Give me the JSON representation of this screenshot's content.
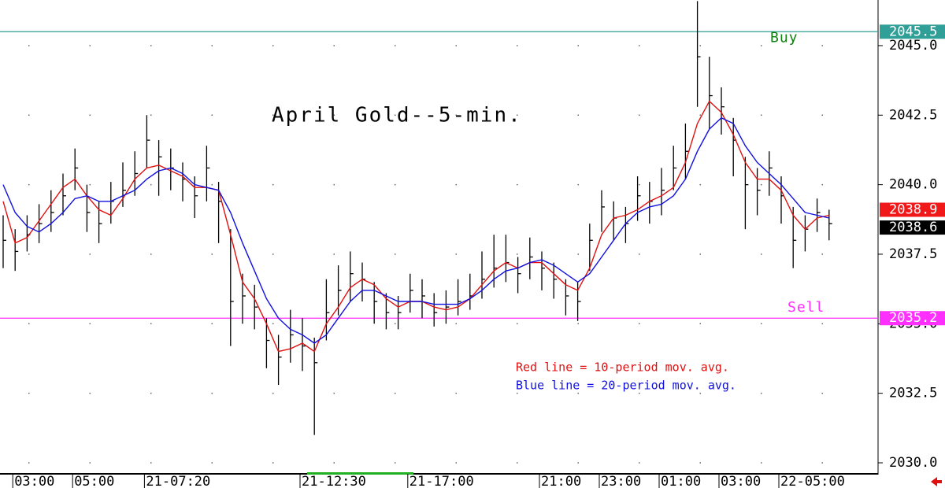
{
  "chart_data": {
    "type": "ohlc",
    "title": "April Gold--5-min.",
    "annotations": [
      {
        "text": "Red line = 10-period mov. avg.",
        "color": "#e01010"
      },
      {
        "text": "Blue line = 20-period mov. avg.",
        "color": "#1010e0"
      }
    ],
    "categories": [
      null,
      "03:00",
      null,
      null,
      null,
      null,
      "05:00",
      null,
      null,
      null,
      null,
      null,
      "21-07:20",
      null,
      null,
      null,
      null,
      null,
      null,
      null,
      null,
      null,
      null,
      null,
      null,
      "21-12:30",
      null,
      null,
      null,
      null,
      null,
      null,
      null,
      null,
      "21-17:00",
      null,
      null,
      null,
      null,
      null,
      null,
      null,
      null,
      null,
      null,
      "21:00",
      null,
      null,
      null,
      null,
      "23:00",
      null,
      null,
      null,
      null,
      "01:00",
      null,
      null,
      null,
      null,
      "03:00",
      null,
      null,
      null,
      null,
      "22-05:00",
      null,
      null,
      null,
      null
    ],
    "high": [
      2038.9,
      2038.4,
      2038.9,
      2039.3,
      2039.8,
      2040.4,
      2041.3,
      2040.0,
      2039.4,
      2040.1,
      2040.8,
      2041.2,
      2042.5,
      2041.6,
      2041.3,
      2040.8,
      2040.3,
      2041.4,
      2040.1,
      2038.4,
      2036.8,
      2036.4,
      2035.2,
      2034.6,
      2035.5,
      2035.2,
      2034.5,
      2036.6,
      2037.1,
      2037.6,
      2037.2,
      2036.5,
      2036.1,
      2036.0,
      2036.8,
      2036.6,
      2036.1,
      2036.2,
      2036.6,
      2036.8,
      2037.6,
      2038.2,
      2038.2,
      2037.4,
      2038.1,
      2037.6,
      2037.2,
      2036.6,
      2036.5,
      2038.6,
      2039.8,
      2039.4,
      2039.2,
      2040.3,
      2040.1,
      2040.6,
      2041.4,
      2042.2,
      2046.6,
      2044.6,
      2043.5,
      2042.4,
      2041.0,
      2040.6,
      2041.2,
      2040.3,
      2039.2,
      2038.9,
      2039.5,
      2039.1
    ],
    "low": [
      2037.0,
      2036.9,
      2037.6,
      2037.9,
      2038.3,
      2038.9,
      2039.8,
      2038.3,
      2037.9,
      2038.6,
      2039.2,
      2039.6,
      2040.6,
      2039.6,
      2039.8,
      2039.4,
      2038.8,
      2039.4,
      2037.9,
      2034.2,
      2035.0,
      2034.8,
      2033.4,
      2032.8,
      2033.6,
      2033.3,
      2031.0,
      2034.4,
      2035.3,
      2035.8,
      2035.8,
      2035.0,
      2034.8,
      2034.8,
      2035.4,
      2035.2,
      2034.9,
      2035.0,
      2035.3,
      2035.5,
      2035.9,
      2036.3,
      2036.5,
      2036.1,
      2036.6,
      2036.2,
      2035.9,
      2035.3,
      2035.1,
      2036.9,
      2038.3,
      2038.0,
      2037.9,
      2038.7,
      2038.6,
      2038.9,
      2039.8,
      2040.2,
      2042.8,
      2042.0,
      2041.8,
      2040.3,
      2038.4,
      2038.9,
      2039.6,
      2038.6,
      2037.0,
      2037.6,
      2038.3,
      2038.0
    ],
    "close": [
      2038.0,
      2037.6,
      2038.2,
      2038.6,
      2039.0,
      2039.6,
      2040.6,
      2039.0,
      2038.6,
      2039.4,
      2039.8,
      2040.4,
      2041.6,
      2041.0,
      2040.6,
      2040.2,
      2039.6,
      2040.6,
      2039.4,
      2035.8,
      2036.0,
      2035.6,
      2034.4,
      2033.8,
      2034.6,
      2034.2,
      2033.6,
      2035.4,
      2036.2,
      2036.8,
      2036.6,
      2035.8,
      2035.4,
      2035.4,
      2036.2,
      2036.0,
      2035.4,
      2035.6,
      2035.8,
      2036.0,
      2036.6,
      2037.0,
      2037.2,
      2036.8,
      2037.4,
      2037.0,
      2036.6,
      2036.0,
      2035.8,
      2038.0,
      2039.2,
      2038.8,
      2038.6,
      2039.6,
      2039.4,
      2039.8,
      2040.6,
      2041.2,
      2044.6,
      2043.2,
      2042.8,
      2041.6,
      2040.0,
      2039.8,
      2040.6,
      2039.6,
      2038.0,
      2038.4,
      2039.0,
      2038.6
    ],
    "bar_color": "#000000",
    "series": [
      {
        "color": "#e01010",
        "values": [
          2039.4,
          2037.9,
          2038.1,
          2038.7,
          2039.3,
          2039.9,
          2040.2,
          2039.6,
          2039.1,
          2038.9,
          2039.5,
          2040.2,
          2040.6,
          2040.7,
          2040.5,
          2040.3,
          2039.9,
          2039.9,
          2039.8,
          2038.2,
          2036.5,
          2035.9,
          2035.0,
          2034.0,
          2034.1,
          2034.3,
          2034.0,
          2035.0,
          2035.6,
          2036.3,
          2036.6,
          2036.4,
          2035.9,
          2035.6,
          2035.8,
          2035.8,
          2035.6,
          2035.5,
          2035.6,
          2035.9,
          2036.4,
          2036.9,
          2037.2,
          2037.0,
          2037.2,
          2037.2,
          2036.8,
          2036.4,
          2036.2,
          2037.0,
          2038.2,
          2038.8,
          2038.9,
          2039.1,
          2039.4,
          2039.6,
          2039.9,
          2040.8,
          2042.2,
          2043.0,
          2042.6,
          2041.8,
          2040.8,
          2040.2,
          2040.2,
          2039.8,
          2038.9,
          2038.4,
          2038.8,
          2038.9
        ]
      },
      {
        "color": "#1010e0",
        "values": [
          2040.0,
          2039.0,
          2038.5,
          2038.3,
          2038.6,
          2039.0,
          2039.5,
          2039.6,
          2039.4,
          2039.4,
          2039.6,
          2039.8,
          2040.2,
          2040.5,
          2040.6,
          2040.4,
          2040.0,
          2039.9,
          2039.8,
          2039.0,
          2037.9,
          2036.9,
          2035.9,
          2035.2,
          2034.8,
          2034.6,
          2034.3,
          2034.6,
          2035.2,
          2035.8,
          2036.2,
          2036.2,
          2036.0,
          2035.8,
          2035.8,
          2035.8,
          2035.7,
          2035.7,
          2035.7,
          2035.9,
          2036.2,
          2036.6,
          2036.9,
          2037.0,
          2037.2,
          2037.3,
          2037.1,
          2036.8,
          2036.5,
          2036.8,
          2037.4,
          2038.0,
          2038.6,
          2039.0,
          2039.2,
          2039.3,
          2039.6,
          2040.2,
          2041.2,
          2042.0,
          2042.4,
          2042.2,
          2041.4,
          2040.8,
          2040.4,
          2040.0,
          2039.5,
          2039.0,
          2038.9,
          2038.8
        ]
      }
    ],
    "levels": [
      {
        "name": "Buy",
        "value": 2045.5,
        "value_label": "2045.5",
        "color": "#2f9f98",
        "text_color": "#108010"
      },
      {
        "name": "Sell",
        "value": 2035.2,
        "value_label": "2035.2",
        "color": "#ff30ff",
        "text_color": "#ff30ff"
      }
    ],
    "markers": [
      {
        "value": 2038.9,
        "label": "2038.9",
        "color": "#f01818"
      },
      {
        "value": 2038.6,
        "label": "2038.6",
        "color": "#000000"
      }
    ],
    "ylim": [
      2029.66,
      2046.64
    ],
    "yticks": [
      {
        "value": 2030,
        "label": "2030.0"
      },
      {
        "value": 2032.5,
        "label": "2032.5"
      },
      {
        "value": 2035,
        "label": "2035.0"
      },
      {
        "value": 2037.5,
        "label": "2037.5"
      },
      {
        "value": 2040,
        "label": "2040.0"
      },
      {
        "value": 2042.5,
        "label": "2042.5"
      },
      {
        "value": 2045,
        "label": "2045.0"
      }
    ],
    "grid": true
  }
}
